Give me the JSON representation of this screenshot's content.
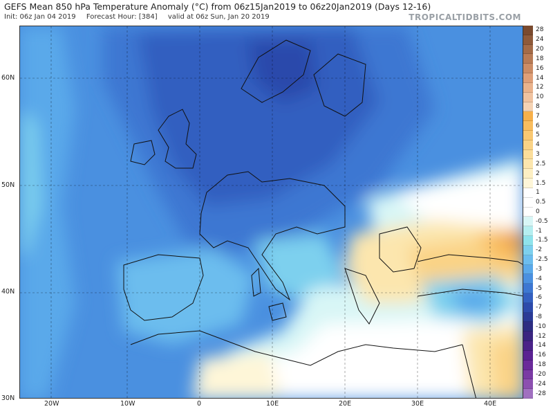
{
  "header": {
    "title": "GEFS Mean 850 hPa Temperature Anomaly (°C) from 06z15Jan2019 to 06z20Jan2019 (Days 12-16)",
    "init": "Init: 06z Jan 04 2019",
    "forecast_hour": "Forecast Hour: [384]",
    "valid": "valid at 06z Sun, Jan 20 2019",
    "brand": "TROPICALTIDBITS.COM"
  },
  "axes": {
    "lat_labels": [
      "60N",
      "50N",
      "40N",
      "30N"
    ],
    "lon_labels": [
      "20W",
      "10W",
      "0",
      "10E",
      "20E",
      "30E",
      "40E"
    ]
  },
  "colorbar": {
    "levels": [
      "28",
      "24",
      "20",
      "18",
      "16",
      "14",
      "12",
      "10",
      "8",
      "7",
      "6",
      "5",
      "4",
      "3",
      "2.5",
      "2",
      "1.5",
      "1",
      "0.5",
      "0",
      "-0.5",
      "-1",
      "-1.5",
      "-2",
      "-2.5",
      "-3",
      "-4",
      "-5",
      "-6",
      "-7",
      "-8",
      "-10",
      "-12",
      "-14",
      "-16",
      "-18",
      "-20",
      "-24",
      "-28"
    ],
    "colors": [
      "#7a4a2e",
      "#8e5a3a",
      "#a36b48",
      "#b87b56",
      "#cc8c65",
      "#df9f78",
      "#eab38c",
      "#f0c3a0",
      "#f5d3b4",
      "#f7b04a",
      "#f9bd5e",
      "#f9c872",
      "#fad386",
      "#fbdd9a",
      "#fce6ae",
      "#fdefc3",
      "#fef6d8",
      "#ffffff",
      "#ffffff",
      "#ffffff",
      "#d8f6f6",
      "#b5eef0",
      "#8fe3ec",
      "#7dd0ee",
      "#6cbdee",
      "#5aa9ea",
      "#4a90e0",
      "#3d77d2",
      "#335fc0",
      "#2c4aab",
      "#2a3a96",
      "#2d2d82",
      "#3a2580",
      "#4a2288",
      "#5a2292",
      "#6a2a9a",
      "#7a3aa4",
      "#8c50b0",
      "#a070c0"
    ]
  }
}
